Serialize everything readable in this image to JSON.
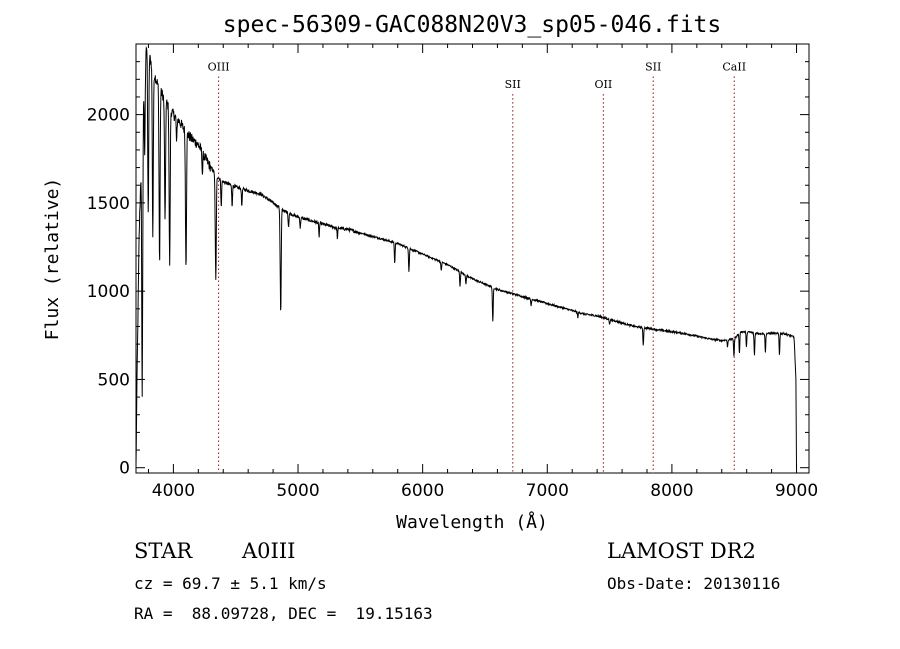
{
  "chart_data": {
    "type": "line",
    "title": "spec-56309-GAC088N20V3_sp05-046.fits",
    "xlabel": "Wavelength (Å)",
    "ylabel": "Flux (relative)",
    "xlim": [
      3700,
      9100
    ],
    "ylim": [
      -30,
      2400
    ],
    "x_ticks": [
      4000,
      5000,
      6000,
      7000,
      8000,
      9000
    ],
    "y_ticks": [
      0,
      500,
      1000,
      1500,
      2000
    ],
    "grid": false,
    "legend": "none",
    "continuum_points": [
      [
        3700,
        0
      ],
      [
        3712,
        700
      ],
      [
        3725,
        1300
      ],
      [
        3740,
        1700
      ],
      [
        3760,
        2150
      ],
      [
        3780,
        2400
      ],
      [
        3820,
        2300
      ],
      [
        3860,
        2200
      ],
      [
        3900,
        2130
      ],
      [
        3950,
        2060
      ],
      [
        4000,
        2000
      ],
      [
        4050,
        1960
      ],
      [
        4100,
        1900
      ],
      [
        4150,
        1860
      ],
      [
        4200,
        1830
      ],
      [
        4250,
        1760
      ],
      [
        4300,
        1700
      ],
      [
        4350,
        1650
      ],
      [
        4400,
        1620
      ],
      [
        4500,
        1590
      ],
      [
        4600,
        1570
      ],
      [
        4700,
        1550
      ],
      [
        4800,
        1500
      ],
      [
        4900,
        1450
      ],
      [
        5000,
        1420
      ],
      [
        5100,
        1400
      ],
      [
        5200,
        1380
      ],
      [
        5300,
        1360
      ],
      [
        5400,
        1350
      ],
      [
        5500,
        1330
      ],
      [
        5600,
        1310
      ],
      [
        5700,
        1290
      ],
      [
        5800,
        1270
      ],
      [
        5900,
        1240
      ],
      [
        6000,
        1210
      ],
      [
        6100,
        1180
      ],
      [
        6200,
        1150
      ],
      [
        6300,
        1110
      ],
      [
        6400,
        1070
      ],
      [
        6500,
        1040
      ],
      [
        6600,
        1010
      ],
      [
        6700,
        990
      ],
      [
        6800,
        970
      ],
      [
        6900,
        950
      ],
      [
        7000,
        930
      ],
      [
        7100,
        910
      ],
      [
        7200,
        890
      ],
      [
        7300,
        870
      ],
      [
        7400,
        860
      ],
      [
        7500,
        840
      ],
      [
        7600,
        820
      ],
      [
        7700,
        800
      ],
      [
        7800,
        790
      ],
      [
        7900,
        780
      ],
      [
        8000,
        770
      ],
      [
        8100,
        760
      ],
      [
        8200,
        745
      ],
      [
        8300,
        730
      ],
      [
        8400,
        720
      ],
      [
        8500,
        730
      ],
      [
        8550,
        770
      ],
      [
        8600,
        770
      ],
      [
        8700,
        760
      ],
      [
        8800,
        760
      ],
      [
        8900,
        760
      ],
      [
        8980,
        740
      ],
      [
        8995,
        500
      ],
      [
        9000,
        0
      ]
    ],
    "absorption_lines": [
      {
        "x": 3750,
        "depth": 1500
      },
      {
        "x": 3770,
        "depth": 500
      },
      {
        "x": 3798,
        "depth": 900
      },
      {
        "x": 3835,
        "depth": 950
      },
      {
        "x": 3889,
        "depth": 1000
      },
      {
        "x": 3933,
        "depth": 700
      },
      {
        "x": 3970,
        "depth": 880
      },
      {
        "x": 4026,
        "depth": 150
      },
      {
        "x": 4101,
        "depth": 750
      },
      {
        "x": 4233,
        "depth": 120
      },
      {
        "x": 4340,
        "depth": 600
      },
      {
        "x": 4384,
        "depth": 150
      },
      {
        "x": 4471,
        "depth": 120
      },
      {
        "x": 4549,
        "depth": 100
      },
      {
        "x": 4861,
        "depth": 600
      },
      {
        "x": 4924,
        "depth": 80
      },
      {
        "x": 5018,
        "depth": 60
      },
      {
        "x": 5169,
        "depth": 80
      },
      {
        "x": 5316,
        "depth": 60
      },
      {
        "x": 5776,
        "depth": 120
      },
      {
        "x": 5890,
        "depth": 130
      },
      {
        "x": 6149,
        "depth": 50
      },
      {
        "x": 6300,
        "depth": 80
      },
      {
        "x": 6347,
        "depth": 50
      },
      {
        "x": 6563,
        "depth": 200
      },
      {
        "x": 6870,
        "depth": 40
      },
      {
        "x": 7245,
        "depth": 30
      },
      {
        "x": 7500,
        "depth": 30
      },
      {
        "x": 7770,
        "depth": 100
      },
      {
        "x": 8446,
        "depth": 40
      },
      {
        "x": 8498,
        "depth": 100
      },
      {
        "x": 8542,
        "depth": 120
      },
      {
        "x": 8598,
        "depth": 90
      },
      {
        "x": 8662,
        "depth": 130
      },
      {
        "x": 8750,
        "depth": 110
      },
      {
        "x": 8863,
        "depth": 120
      }
    ],
    "emission_markers": [
      {
        "label": "OIII",
        "x": 4363,
        "label_y": 2250
      },
      {
        "label": "SII",
        "x": 6723,
        "label_y": 2150
      },
      {
        "label": "OII",
        "x": 7450,
        "label_y": 2150
      },
      {
        "label": "SII",
        "x": 7850,
        "label_y": 2250
      },
      {
        "label": "CaII",
        "x": 8500,
        "label_y": 2250
      }
    ]
  },
  "info": {
    "object_class": "STAR",
    "subclass": "A0III",
    "survey": "LAMOST DR2",
    "redshift": "cz = 69.7 ± 5.1 km/s",
    "obs_date": "Obs-Date: 20130116",
    "coords": "RA =  88.09728, DEC =  19.15163"
  }
}
